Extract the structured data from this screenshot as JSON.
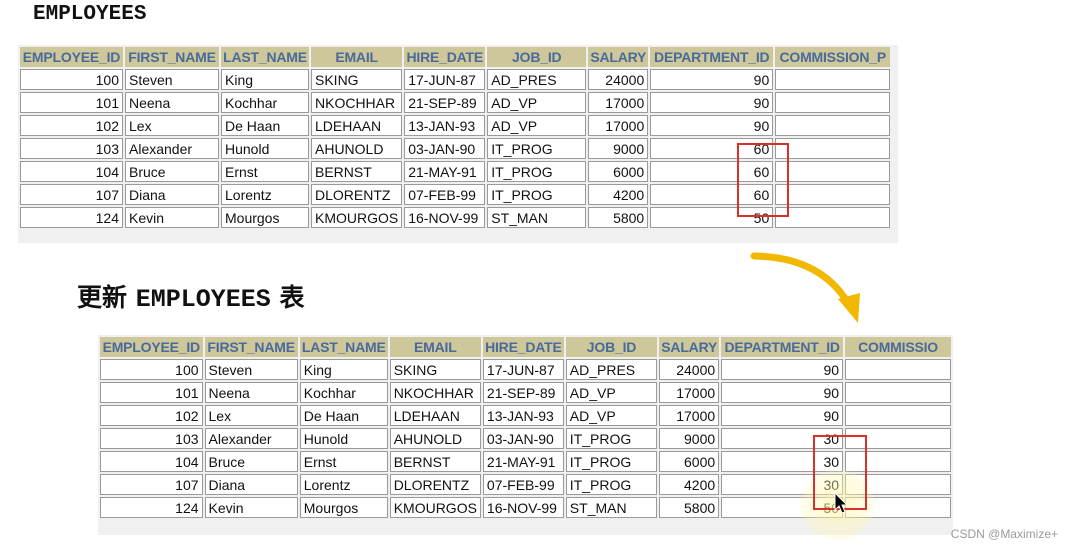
{
  "table1": {
    "title": "EMPLOYEES",
    "columns": [
      "EMPLOYEE_ID",
      "FIRST_NAME",
      "LAST_NAME",
      "EMAIL",
      "HIRE_DATE",
      "JOB_ID",
      "SALARY",
      "DEPARTMENT_ID",
      "COMMISSION_P"
    ],
    "rows": [
      [
        "100",
        "Steven",
        "King",
        "SKING",
        "17-JUN-87",
        "AD_PRES",
        "24000",
        "90",
        ""
      ],
      [
        "101",
        "Neena",
        "Kochhar",
        "NKOCHHAR",
        "21-SEP-89",
        "AD_VP",
        "17000",
        "90",
        ""
      ],
      [
        "102",
        "Lex",
        "De Haan",
        "LDEHAAN",
        "13-JAN-93",
        "AD_VP",
        "17000",
        "90",
        ""
      ],
      [
        "103",
        "Alexander",
        "Hunold",
        "AHUNOLD",
        "03-JAN-90",
        "IT_PROG",
        "9000",
        "60",
        ""
      ],
      [
        "104",
        "Bruce",
        "Ernst",
        "BERNST",
        "21-MAY-91",
        "IT_PROG",
        "6000",
        "60",
        ""
      ],
      [
        "107",
        "Diana",
        "Lorentz",
        "DLORENTZ",
        "07-FEB-99",
        "IT_PROG",
        "4200",
        "60",
        ""
      ],
      [
        "124",
        "Kevin",
        "Mourgos",
        "KMOURGOS",
        "16-NOV-99",
        "ST_MAN",
        "5800",
        "50",
        ""
      ]
    ]
  },
  "table2": {
    "title_prefix": "更新 ",
    "title_name": "EMPLOYEES",
    "title_suffix": " 表",
    "columns": [
      "EMPLOYEE_ID",
      "FIRST_NAME",
      "LAST_NAME",
      "EMAIL",
      "HIRE_DATE",
      "JOB_ID",
      "SALARY",
      "DEPARTMENT_ID",
      "COMMISSIO"
    ],
    "rows": [
      [
        "100",
        "Steven",
        "King",
        "SKING",
        "17-JUN-87",
        "AD_PRES",
        "24000",
        "90",
        ""
      ],
      [
        "101",
        "Neena",
        "Kochhar",
        "NKOCHHAR",
        "21-SEP-89",
        "AD_VP",
        "17000",
        "90",
        ""
      ],
      [
        "102",
        "Lex",
        "De Haan",
        "LDEHAAN",
        "13-JAN-93",
        "AD_VP",
        "17000",
        "90",
        ""
      ],
      [
        "103",
        "Alexander",
        "Hunold",
        "AHUNOLD",
        "03-JAN-90",
        "IT_PROG",
        "9000",
        "30",
        ""
      ],
      [
        "104",
        "Bruce",
        "Ernst",
        "BERNST",
        "21-MAY-91",
        "IT_PROG",
        "6000",
        "30",
        ""
      ],
      [
        "107",
        "Diana",
        "Lorentz",
        "DLORENTZ",
        "07-FEB-99",
        "IT_PROG",
        "4200",
        "30",
        ""
      ],
      [
        "124",
        "Kevin",
        "Mourgos",
        "KMOURGOS",
        "16-NOV-99",
        "ST_MAN",
        "5800",
        "50",
        ""
      ]
    ]
  },
  "colors": {
    "header_bg": "#cdc79a",
    "header_text": "#4a6a9c",
    "highlight": "#d8302a",
    "arrow": "#f0b800"
  },
  "watermark": "CSDN @Maximize+"
}
